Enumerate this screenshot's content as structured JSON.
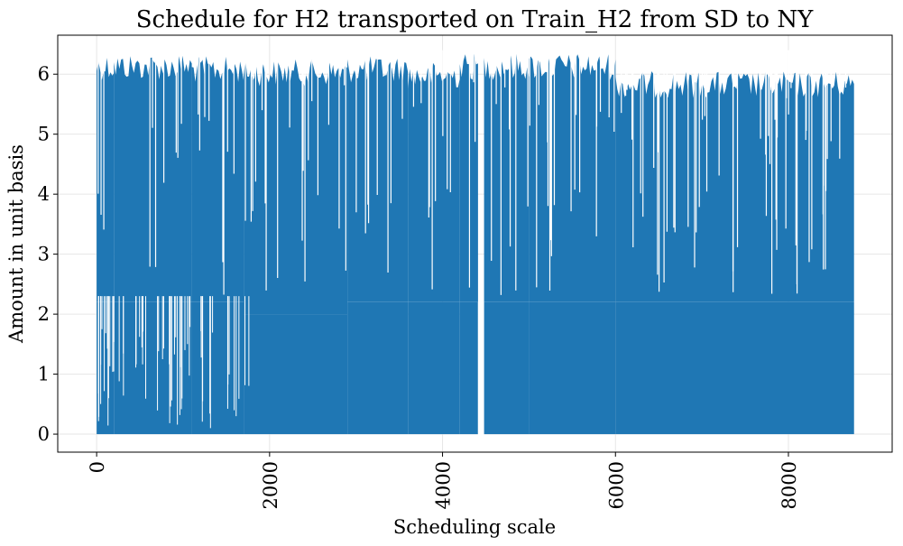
{
  "chart_data": {
    "type": "line",
    "title": "Schedule for H2 transported on Train_H2 from SD to NY",
    "xlabel": "Scheduling scale",
    "ylabel": "Amount in unit basis",
    "xlim": [
      -450,
      9200
    ],
    "ylim": [
      -0.3,
      6.65
    ],
    "xticks": [
      0,
      2000,
      4000,
      6000,
      8000
    ],
    "yticks": [
      0,
      1,
      2,
      3,
      4,
      5,
      6
    ],
    "grid": true,
    "series": [
      {
        "color": "#1f77b4",
        "x_range": [
          0,
          8759
        ],
        "max_value": 6.35,
        "min_value": 0,
        "gap_x_range": [
          4410,
          4480
        ],
        "segments": [
          {
            "x": [
              0,
              200
            ],
            "high": 6.35,
            "low": 0,
            "band_low": 2.2
          },
          {
            "x": [
              200,
              1100
            ],
            "high": 6.35,
            "low": 0,
            "band_low": 2.2
          },
          {
            "x": [
              1100,
              1700
            ],
            "high": 6.3,
            "low": 0,
            "band_low": 2.2
          },
          {
            "x": [
              1700,
              2900
            ],
            "high": 6.25,
            "low": 0,
            "band_low": 2.0
          },
          {
            "x": [
              2900,
              3600
            ],
            "high": 6.3,
            "low": 0,
            "band_low": 2.2
          },
          {
            "x": [
              3600,
              4200
            ],
            "high": 6.2,
            "low": 0,
            "band_low": 2.2
          },
          {
            "x": [
              4200,
              4410
            ],
            "high": 6.35,
            "low": 0,
            "band_low": 2.2
          },
          {
            "x": [
              4480,
              5000
            ],
            "high": 6.35,
            "low": 0,
            "band_low": 2.2
          },
          {
            "x": [
              5000,
              6000
            ],
            "high": 6.35,
            "low": 0,
            "band_low": 2.2
          },
          {
            "x": [
              6000,
              8759
            ],
            "high": 6.05,
            "low": 0,
            "band_low": 2.2
          }
        ]
      }
    ]
  }
}
